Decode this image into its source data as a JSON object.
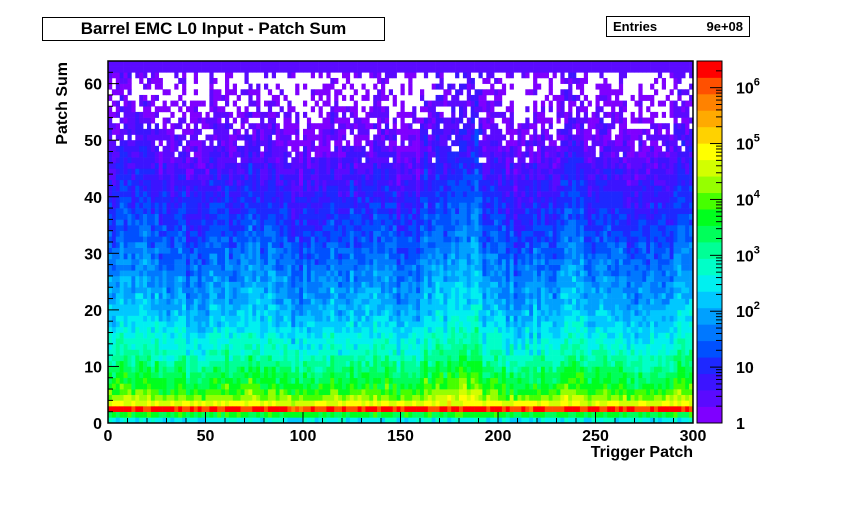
{
  "chart_data": {
    "type": "heatmap",
    "title": "Barrel EMC L0 Input - Patch Sum",
    "xlabel": "Trigger Patch",
    "ylabel": "Patch Sum",
    "xlim": [
      0,
      300
    ],
    "ylim": [
      0,
      64
    ],
    "x_ticks": [
      "0",
      "50",
      "100",
      "150",
      "200",
      "250",
      "300"
    ],
    "y_ticks": [
      "0",
      "10",
      "20",
      "30",
      "40",
      "50",
      "60"
    ],
    "z_scale": "log",
    "zlim": [
      1,
      3000000
    ],
    "colorbar_ticks": [
      {
        "value": 1,
        "label": "1",
        "exp": ""
      },
      {
        "value": 10,
        "label": "10",
        "exp": ""
      },
      {
        "value": 100,
        "label": "10",
        "exp": "2"
      },
      {
        "value": 1000,
        "label": "10",
        "exp": "3"
      },
      {
        "value": 10000,
        "label": "10",
        "exp": "4"
      },
      {
        "value": 100000,
        "label": "10",
        "exp": "5"
      },
      {
        "value": 1000000,
        "label": "10",
        "exp": "6"
      }
    ],
    "profile_log10_counts_by_patch_sum": [
      [
        0,
        2.5
      ],
      [
        1,
        3.6
      ],
      [
        2,
        6.2
      ],
      [
        3,
        4.7
      ],
      [
        4,
        4.2
      ],
      [
        5,
        3.9
      ],
      [
        6,
        3.7
      ],
      [
        7,
        3.55
      ],
      [
        8,
        3.4
      ],
      [
        10,
        3.1
      ],
      [
        12,
        2.8
      ],
      [
        15,
        2.5
      ],
      [
        18,
        2.2
      ],
      [
        20,
        2.05
      ],
      [
        25,
        1.75
      ],
      [
        30,
        1.45
      ],
      [
        35,
        1.15
      ],
      [
        40,
        0.9
      ],
      [
        45,
        0.6
      ],
      [
        50,
        0.35
      ],
      [
        55,
        0.15
      ],
      [
        60,
        0.05
      ],
      [
        62,
        0.4
      ],
      [
        63,
        -1
      ]
    ],
    "dead_patches": [
      117,
      277
    ]
  },
  "stats": {
    "entries_label": "Entries",
    "entries_value": "9e+08"
  },
  "colors": {
    "palette": [
      "#7f00ff",
      "#5a0aff",
      "#3c14ff",
      "#1e28ff",
      "#0050ff",
      "#0078ff",
      "#00a0ff",
      "#00c8ff",
      "#00f0f0",
      "#00ffc8",
      "#00ff96",
      "#00ff5a",
      "#00ff1e",
      "#46ff00",
      "#96ff00",
      "#d2ff00",
      "#ffff00",
      "#ffd200",
      "#ffaa00",
      "#ff8200",
      "#ff5000",
      "#ff0000"
    ]
  }
}
